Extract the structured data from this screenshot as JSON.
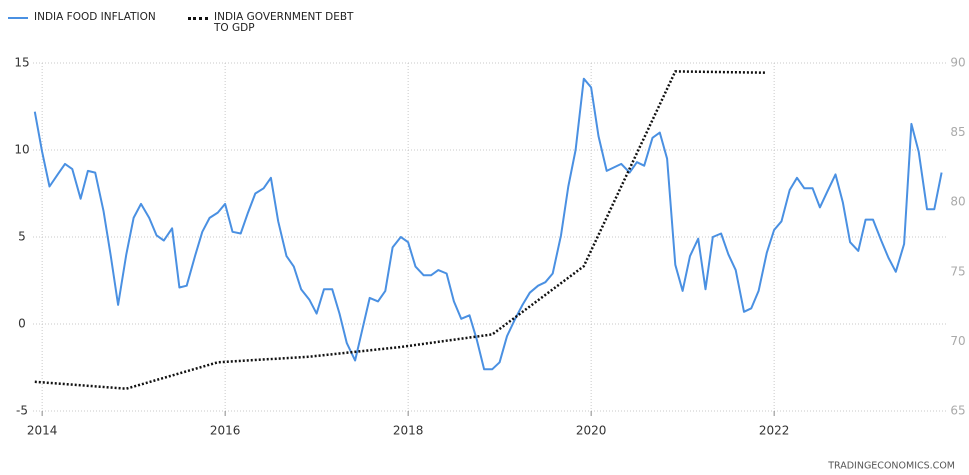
{
  "chart_data": {
    "type": "line",
    "legend": "top-left",
    "grid": true,
    "footer": "TRADINGECONOMICS.COM",
    "xlim": [
      2013.9,
      2023.9
    ],
    "xticks": [
      2014,
      2016,
      2018,
      2020,
      2022
    ],
    "ylim": [
      -5,
      15
    ],
    "yticks": [
      -5,
      0,
      5,
      10,
      15
    ],
    "y2lim": [
      65,
      90
    ],
    "y2ticks": [
      65,
      70,
      75,
      80,
      85,
      90
    ],
    "series": [
      {
        "name": "INDIA FOOD INFLATION",
        "color": "#4a90e2",
        "style": "solid",
        "x": [
          2013.92,
          2014.0,
          2014.08,
          2014.17,
          2014.25,
          2014.33,
          2014.42,
          2014.5,
          2014.58,
          2014.67,
          2014.75,
          2014.83,
          2014.92,
          2015.0,
          2015.08,
          2015.17,
          2015.25,
          2015.33,
          2015.42,
          2015.5,
          2015.58,
          2015.67,
          2015.75,
          2015.83,
          2015.92,
          2016.0,
          2016.08,
          2016.17,
          2016.25,
          2016.33,
          2016.42,
          2016.5,
          2016.58,
          2016.67,
          2016.75,
          2016.83,
          2016.92,
          2017.0,
          2017.08,
          2017.17,
          2017.25,
          2017.33,
          2017.42,
          2017.5,
          2017.58,
          2017.67,
          2017.75,
          2017.83,
          2017.92,
          2018.0,
          2018.08,
          2018.17,
          2018.25,
          2018.33,
          2018.42,
          2018.5,
          2018.58,
          2018.67,
          2018.75,
          2018.83,
          2018.92,
          2019.0,
          2019.08,
          2019.17,
          2019.25,
          2019.33,
          2019.42,
          2019.5,
          2019.58,
          2019.67,
          2019.75,
          2019.83,
          2019.92,
          2020.0,
          2020.08,
          2020.17,
          2020.25,
          2020.33,
          2020.42,
          2020.5,
          2020.58,
          2020.67,
          2020.75,
          2020.83,
          2020.92,
          2021.0,
          2021.08,
          2021.17,
          2021.25,
          2021.33,
          2021.42,
          2021.5,
          2021.58,
          2021.67,
          2021.75,
          2021.83,
          2021.92,
          2022.0,
          2022.08,
          2022.17,
          2022.25,
          2022.33,
          2022.42,
          2022.5,
          2022.58,
          2022.67,
          2022.75,
          2022.83,
          2022.92,
          2023.0,
          2023.08,
          2023.17,
          2023.25,
          2023.33,
          2023.42,
          2023.5,
          2023.58,
          2023.67,
          2023.75,
          2023.83
        ],
        "values": [
          12.2,
          9.9,
          7.9,
          8.6,
          9.2,
          8.9,
          7.2,
          8.8,
          8.7,
          6.5,
          3.9,
          1.1,
          4.0,
          6.1,
          6.9,
          6.1,
          5.1,
          4.8,
          5.5,
          2.1,
          2.2,
          3.9,
          5.3,
          6.1,
          6.4,
          6.9,
          5.3,
          5.2,
          6.4,
          7.5,
          7.8,
          8.4,
          5.9,
          3.9,
          3.3,
          2.0,
          1.4,
          0.6,
          2.0,
          2.0,
          0.6,
          -1.1,
          -2.1,
          -0.3,
          1.5,
          1.3,
          1.9,
          4.4,
          5.0,
          4.7,
          3.3,
          2.8,
          2.8,
          3.1,
          2.9,
          1.3,
          0.3,
          0.5,
          -0.9,
          -2.6,
          -2.6,
          -2.2,
          -0.7,
          0.3,
          1.1,
          1.8,
          2.2,
          2.4,
          2.9,
          5.1,
          7.9,
          10.0,
          14.1,
          13.6,
          10.8,
          8.8,
          9.0,
          9.2,
          8.7,
          9.3,
          9.1,
          10.7,
          11.0,
          9.5,
          3.4,
          1.9,
          3.9,
          4.9,
          2.0,
          5.0,
          5.2,
          4.0,
          3.1,
          0.7,
          0.9,
          1.9,
          4.1,
          5.4,
          5.9,
          7.7,
          8.4,
          7.8,
          7.8,
          6.7,
          7.6,
          8.6,
          7.0,
          4.7,
          4.2,
          6.0,
          6.0,
          4.8,
          3.8,
          3.0,
          4.6,
          11.5,
          9.9,
          6.6,
          6.6,
          8.7
        ]
      },
      {
        "name": "INDIA GOVERNMENT DEBT TO GDP",
        "color": "#111111",
        "style": "dotted",
        "axis": "y2",
        "x": [
          2013.92,
          2014.92,
          2015.92,
          2016.92,
          2017.92,
          2018.92,
          2019.92,
          2020.92,
          2021.92
        ],
        "values": [
          67.1,
          66.6,
          68.5,
          68.9,
          69.6,
          70.5,
          75.4,
          89.4,
          89.3
        ]
      }
    ]
  }
}
